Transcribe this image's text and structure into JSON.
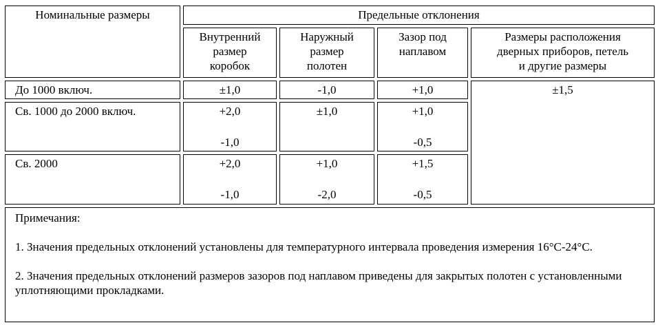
{
  "header": {
    "nominal": "Номинальные размеры",
    "limits": "Предельные отклонения",
    "columns": [
      [
        "Внутренний",
        "размер",
        "коробок"
      ],
      [
        "Наружный",
        "размер",
        "полотен"
      ],
      [
        "Зазор под",
        "наплавом"
      ],
      [
        "Размеры расположения",
        "дверных приборов, петель",
        "и другие размеры"
      ]
    ]
  },
  "rows": [
    {
      "label": "До 1000 включ.",
      "cells": [
        [
          "±1,0"
        ],
        [
          "-1,0"
        ],
        [
          "+1,0"
        ]
      ]
    },
    {
      "label": "Св. 1000 до 2000 включ.",
      "cells": [
        [
          "+2,0",
          "-1,0"
        ],
        [
          "±1,0"
        ],
        [
          "+1,0",
          "-0,5"
        ]
      ]
    },
    {
      "label": "Св. 2000",
      "cells": [
        [
          "+2,0",
          "-1,0"
        ],
        [
          "+1,0",
          "-2,0"
        ],
        [
          "+1,5",
          "-0,5"
        ]
      ]
    }
  ],
  "other_sizes_value": "±1,5",
  "notes": {
    "title": "Примечания:",
    "items": [
      "1. Значения предельных отклонений установлены для температурного интервала проведения измерения 16°С-24°С.",
      "2. Значения предельных отклонений размеров зазоров под наплавом приведены для закрытых полотен с установленными уплотняющими прокладками."
    ]
  }
}
